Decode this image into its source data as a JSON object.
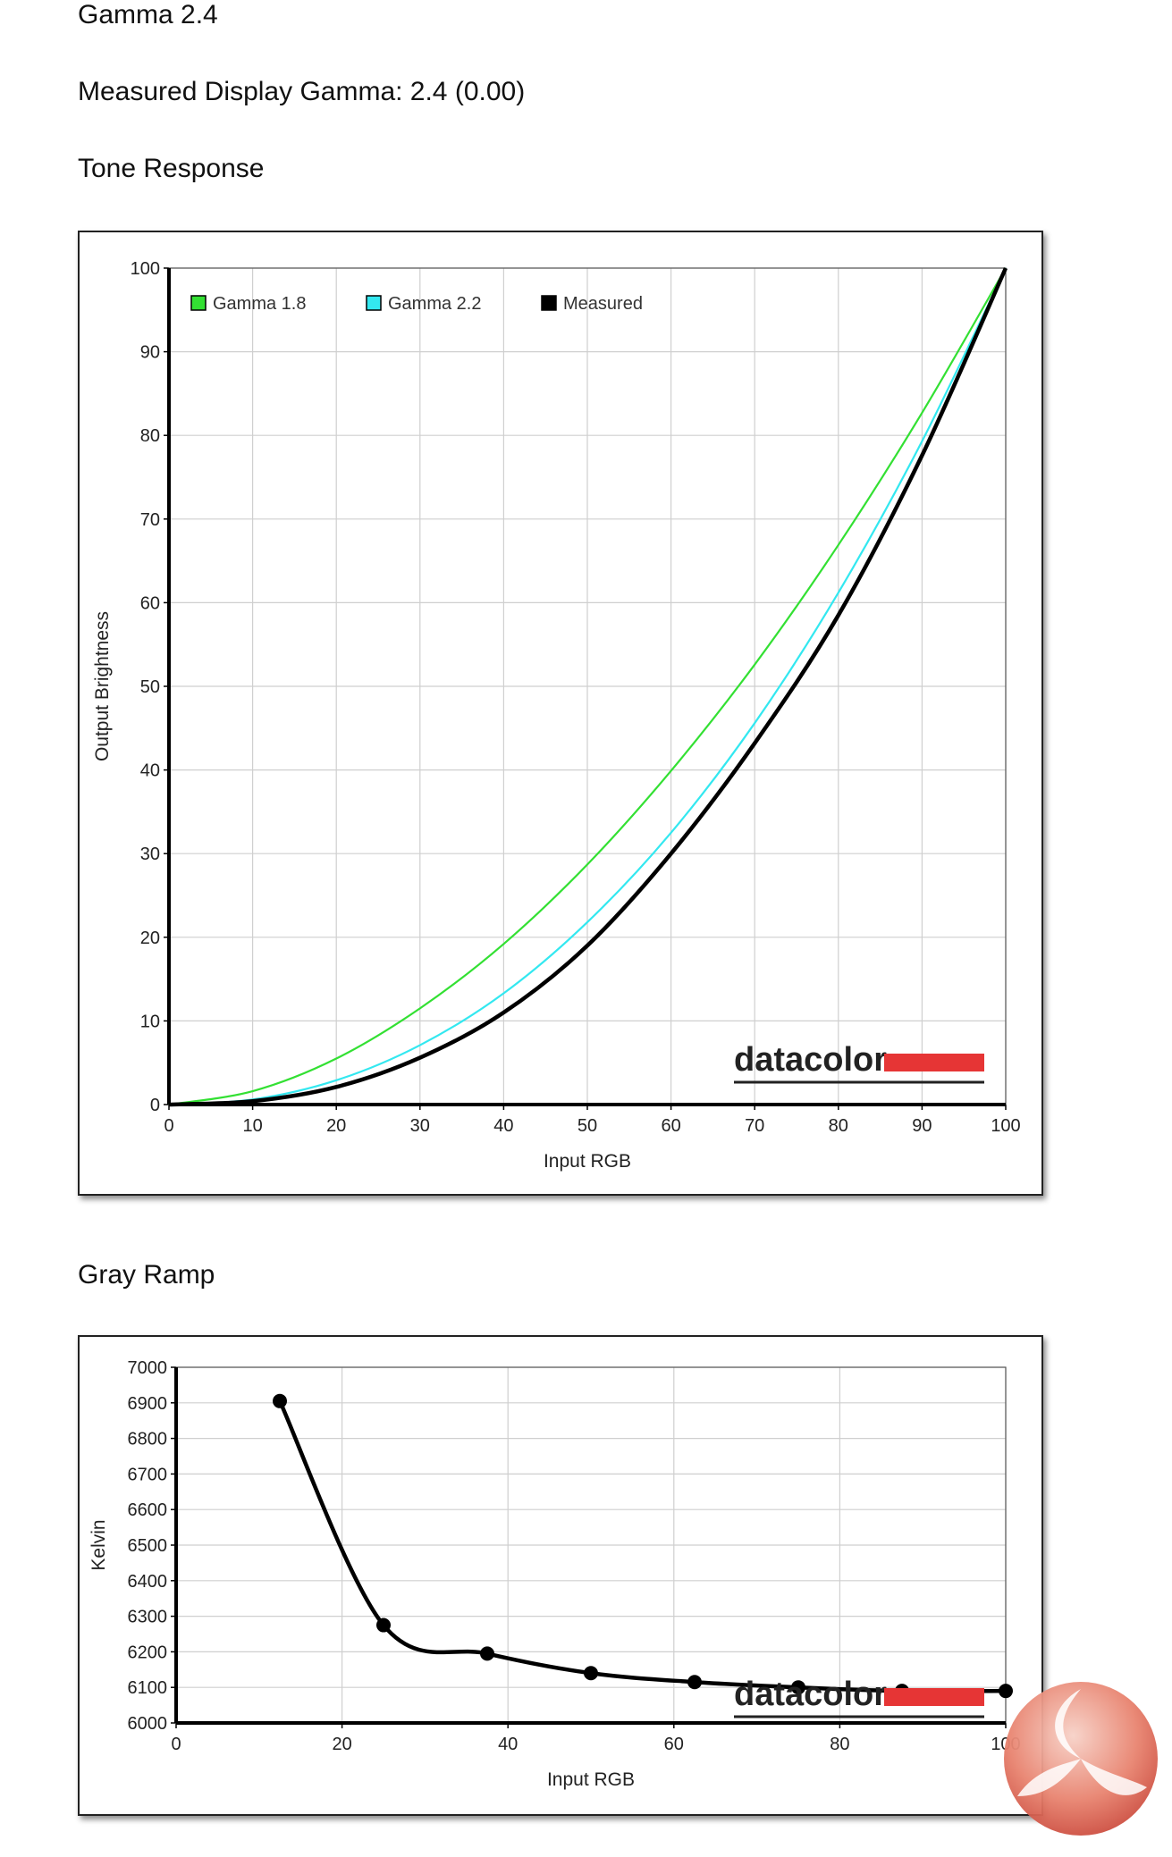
{
  "page": {
    "title": "Gamma 2.4",
    "measured_text": "Measured Display Gamma: 2.4 (0.00)",
    "tone_heading": "Tone Response",
    "gray_heading": "Gray Ramp"
  },
  "watermark": {
    "brand": "datacolor",
    "accent": "#e63535"
  },
  "chart_data": [
    {
      "type": "line",
      "title": "Tone Response",
      "xlabel": "Input RGB",
      "ylabel": "Output Brightness",
      "xlim": [
        0,
        100
      ],
      "ylim": [
        0,
        100
      ],
      "xticks": [
        0,
        10,
        20,
        30,
        40,
        50,
        60,
        70,
        80,
        90,
        100
      ],
      "yticks": [
        0,
        10,
        20,
        30,
        40,
        50,
        60,
        70,
        80,
        90,
        100
      ],
      "grid": true,
      "legend": "top-left",
      "series": [
        {
          "name": "Gamma 1.8",
          "color": "#33e033",
          "x": [
            0,
            10,
            20,
            30,
            40,
            50,
            60,
            70,
            80,
            90,
            100
          ],
          "y": [
            0,
            1.6,
            5.5,
            11.5,
            19.2,
            28.7,
            39.9,
            52.6,
            66.9,
            82.7,
            100
          ]
        },
        {
          "name": "Gamma 2.2",
          "color": "#33e8f0",
          "x": [
            0,
            10,
            20,
            30,
            40,
            50,
            60,
            70,
            80,
            90,
            100
          ],
          "y": [
            0,
            0.6,
            2.9,
            7.1,
            13.3,
            21.8,
            32.5,
            45.6,
            61.2,
            79.3,
            100
          ]
        },
        {
          "name": "Measured",
          "color": "#000000",
          "x": [
            0,
            10,
            20,
            30,
            40,
            50,
            60,
            70,
            80,
            90,
            100
          ],
          "y": [
            0,
            0.4,
            2.1,
            5.6,
            11.0,
            19.0,
            30.0,
            43.2,
            58.5,
            77.6,
            100
          ]
        }
      ]
    },
    {
      "type": "line",
      "title": "Gray Ramp",
      "xlabel": "Input RGB",
      "ylabel": "Kelvin",
      "xlim": [
        0,
        100
      ],
      "ylim": [
        6000,
        7000
      ],
      "xticks": [
        0,
        20,
        40,
        60,
        80,
        100
      ],
      "yticks": [
        6000,
        6100,
        6200,
        6300,
        6400,
        6500,
        6600,
        6700,
        6800,
        6900,
        7000
      ],
      "grid": true,
      "series": [
        {
          "color": "#000000",
          "x": [
            12.5,
            25,
            37.5,
            50,
            62.5,
            75,
            87.5,
            100
          ],
          "y": [
            6905,
            6275,
            6195,
            6140,
            6115,
            6100,
            6090,
            6090
          ]
        }
      ]
    }
  ]
}
